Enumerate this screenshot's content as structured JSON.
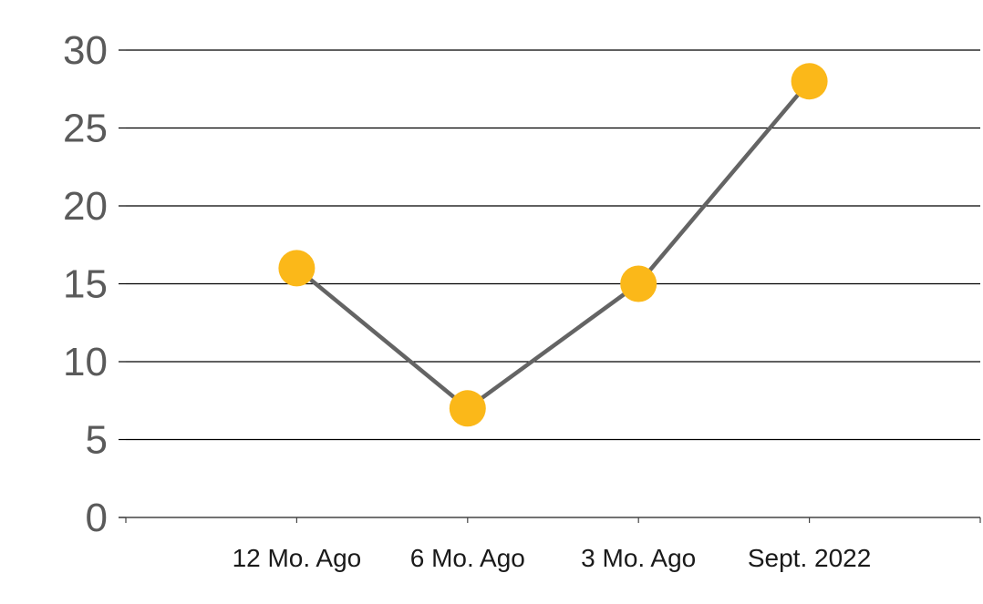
{
  "chart_data": {
    "type": "line",
    "categories": [
      "12 Mo. Ago",
      "6 Mo. Ago",
      "3 Mo. Ago",
      "Sept. 2022"
    ],
    "series": [
      {
        "values": [
          16,
          7,
          15,
          28
        ]
      }
    ],
    "title": "",
    "xlabel": "",
    "ylabel": "",
    "ylim": [
      0,
      30
    ],
    "yticks": [
      "0",
      "5",
      "10",
      "15",
      "20",
      "25",
      "30"
    ],
    "grid": "horizontal",
    "legend": "none",
    "colors": {
      "line": "#646464",
      "marker": "#fbb819",
      "grid": "#000000",
      "tick_text": "#5a5a5a",
      "category_text": "#1a1a1a"
    }
  }
}
